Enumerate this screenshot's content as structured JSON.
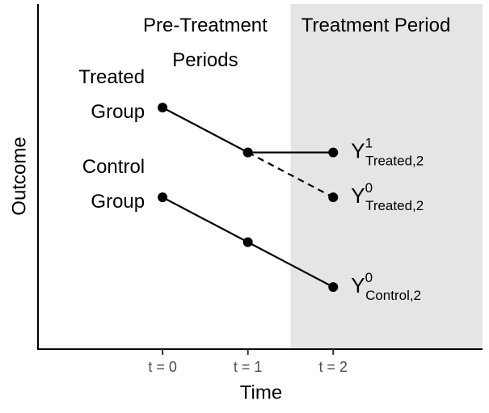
{
  "chart_data": {
    "type": "line",
    "x_label": "Time",
    "y_label": "Outcome",
    "xlim": [
      -1.46,
      3.75
    ],
    "ylim": [
      0,
      10
    ],
    "xticks": [
      {
        "value": 0,
        "label": "t = 0"
      },
      {
        "value": 1,
        "label": "t = 1"
      },
      {
        "value": 2,
        "label": "t = 2"
      }
    ],
    "x": [
      0,
      1,
      2
    ],
    "shaded_region": {
      "from": 1.5,
      "to": 3.75,
      "color": "#e5e5e5"
    },
    "period_labels": [
      {
        "text": "Pre-Treatment Periods",
        "at": 0.5
      },
      {
        "text": "Treatment Period",
        "at": 2.5
      }
    ],
    "series": [
      {
        "name": "Treated Group",
        "color": "#000000",
        "values": [
          7.0,
          5.7,
          5.7
        ]
      },
      {
        "color": "#000000",
        "dashed": true,
        "values": [
          null,
          5.7,
          4.4
        ]
      },
      {
        "name": "Control Group",
        "color": "#000000",
        "values": [
          4.4,
          3.1,
          1.8
        ]
      }
    ],
    "annotations": [
      {
        "text": "Y",
        "sup": "1",
        "sub": "Treated,2"
      },
      {
        "text": "Y",
        "sup": "0",
        "sub": "Treated,2"
      },
      {
        "text": "Y",
        "sup": "0",
        "sub": "Control,2"
      }
    ]
  }
}
